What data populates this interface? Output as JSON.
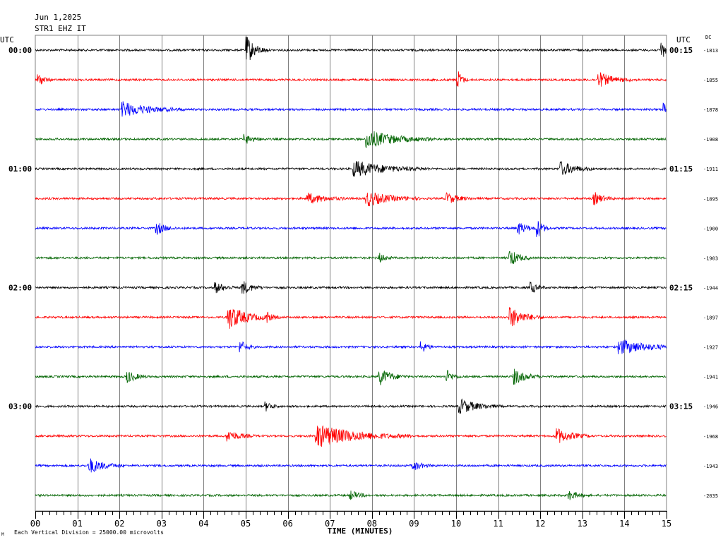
{
  "header": {
    "date": "Jun 1,2025",
    "station": "STR1 EHZ IT",
    "utc_left": "UTC",
    "utc_right": "UTC",
    "dc_label": "DC"
  },
  "footer": {
    "scale_note": "Each Vertical Division = 25000.00 microvolts",
    "corner_mark": "M"
  },
  "colors": {
    "black": "#000000",
    "red": "#ff0000",
    "blue": "#0000ff",
    "green": "#006400",
    "grid": "#808080"
  },
  "chart_data": {
    "type": "line",
    "title": "",
    "xlabel": "TIME (MINUTES)",
    "ylabel": "",
    "xlim": [
      0,
      15
    ],
    "grid": true,
    "x_ticks": [
      "00",
      "01",
      "02",
      "03",
      "04",
      "05",
      "06",
      "07",
      "08",
      "09",
      "10",
      "11",
      "12",
      "13",
      "14",
      "15"
    ],
    "left_time_labels": [
      {
        "row": 0,
        "text": "00:00"
      },
      {
        "row": 4,
        "text": "01:00"
      },
      {
        "row": 8,
        "text": "02:00"
      },
      {
        "row": 12,
        "text": "03:00"
      }
    ],
    "right_time_labels": [
      {
        "row": 0,
        "text": "00:15"
      },
      {
        "row": 4,
        "text": "01:15"
      },
      {
        "row": 8,
        "text": "02:15"
      },
      {
        "row": 12,
        "text": "03:15"
      }
    ],
    "rows": [
      {
        "color": "black",
        "dc": "-1813",
        "events": [
          [
            5.05,
            3.5,
            0.3
          ],
          [
            14.9,
            2.5,
            0.2
          ]
        ]
      },
      {
        "color": "red",
        "dc": "-1855",
        "events": [
          [
            10.05,
            2.5,
            0.15
          ],
          [
            13.4,
            2.0,
            0.5
          ],
          [
            0.1,
            1.5,
            0.2
          ]
        ]
      },
      {
        "color": "blue",
        "dc": "-1878",
        "events": [
          [
            2.1,
            2.0,
            0.9
          ],
          [
            14.95,
            1.8,
            0.1
          ]
        ]
      },
      {
        "color": "green",
        "dc": "-1908",
        "events": [
          [
            7.9,
            2.5,
            1.0
          ],
          [
            5.0,
            1.2,
            0.3
          ]
        ]
      },
      {
        "color": "black",
        "dc": "-1911",
        "events": [
          [
            7.6,
            2.2,
            1.1
          ],
          [
            12.5,
            2.0,
            0.5
          ]
        ]
      },
      {
        "color": "red",
        "dc": "-1895",
        "events": [
          [
            6.5,
            1.4,
            0.6
          ],
          [
            7.9,
            2.0,
            0.8
          ],
          [
            9.8,
            1.4,
            0.4
          ],
          [
            13.3,
            1.6,
            0.3
          ]
        ]
      },
      {
        "color": "blue",
        "dc": "-1900",
        "events": [
          [
            2.9,
            1.6,
            0.3
          ],
          [
            11.5,
            1.6,
            0.3
          ],
          [
            11.95,
            2.2,
            0.2
          ]
        ]
      },
      {
        "color": "green",
        "dc": "-1903",
        "events": [
          [
            11.3,
            2.2,
            0.3
          ],
          [
            8.2,
            1.2,
            0.2
          ]
        ]
      },
      {
        "color": "black",
        "dc": "-1944",
        "events": [
          [
            4.3,
            1.4,
            0.3
          ],
          [
            4.95,
            1.8,
            0.3
          ],
          [
            11.8,
            1.6,
            0.2
          ]
        ]
      },
      {
        "color": "red",
        "dc": "-1897",
        "events": [
          [
            4.6,
            3.5,
            0.6
          ],
          [
            5.5,
            1.4,
            0.2
          ],
          [
            11.3,
            2.8,
            0.5
          ]
        ]
      },
      {
        "color": "blue",
        "dc": "-1927",
        "events": [
          [
            4.9,
            1.6,
            0.2
          ],
          [
            9.2,
            1.4,
            0.2
          ],
          [
            13.9,
            2.0,
            1.0
          ]
        ]
      },
      {
        "color": "green",
        "dc": "-1941",
        "events": [
          [
            2.2,
            1.6,
            0.3
          ],
          [
            8.2,
            2.2,
            0.4
          ],
          [
            9.8,
            1.6,
            0.2
          ],
          [
            11.4,
            2.0,
            0.4
          ]
        ]
      },
      {
        "color": "black",
        "dc": "-1946",
        "events": [
          [
            10.1,
            2.0,
            0.6
          ],
          [
            5.5,
            1.2,
            0.2
          ]
        ]
      },
      {
        "color": "red",
        "dc": "-1968",
        "events": [
          [
            4.6,
            1.5,
            0.4
          ],
          [
            6.7,
            3.2,
            1.4
          ],
          [
            12.4,
            2.2,
            0.5
          ]
        ]
      },
      {
        "color": "blue",
        "dc": "-1943",
        "events": [
          [
            1.3,
            2.0,
            0.5
          ],
          [
            9.0,
            1.2,
            0.3
          ]
        ]
      },
      {
        "color": "green",
        "dc": "-2035",
        "events": [
          [
            7.5,
            1.2,
            0.3
          ],
          [
            12.7,
            1.2,
            0.3
          ]
        ]
      }
    ]
  }
}
